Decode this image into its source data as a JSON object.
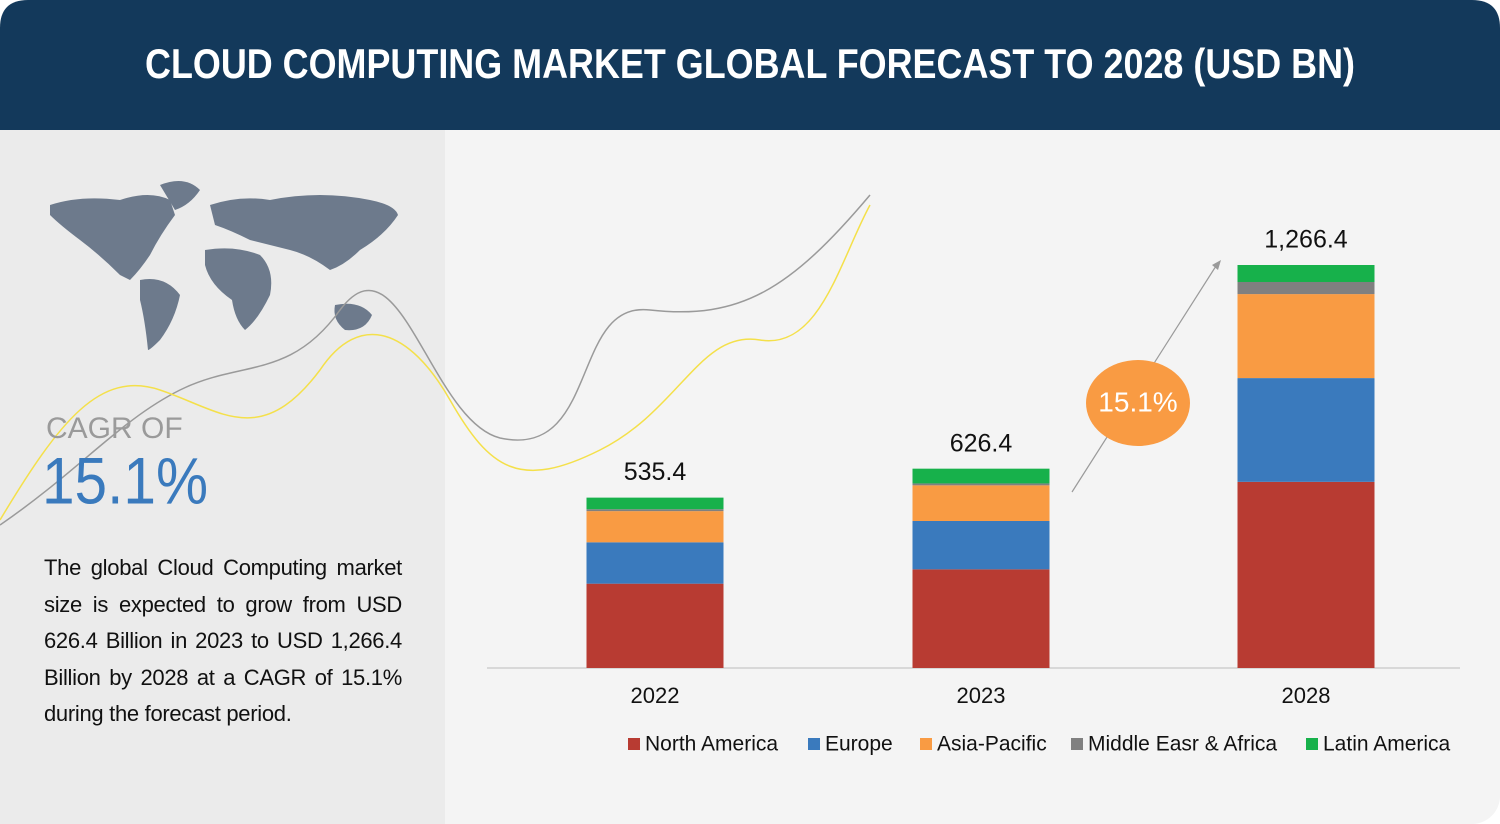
{
  "header": {
    "title": "CLOUD COMPUTING MARKET GLOBAL FORECAST TO 2028 (USD BN)"
  },
  "sidebar": {
    "cagr_label": "CAGR OF",
    "cagr_value": "15.1%",
    "description": "The global Cloud Computing market size is expected to grow from USD 626.4 Billion in 2023 to USD 1,266.4 Billion by 2028 at a CAGR of 15.1% during the forecast period."
  },
  "chart_data": {
    "type": "stacked_bar",
    "categories": [
      "2022",
      "2023",
      "2028"
    ],
    "series": [
      {
        "name": "North America",
        "color": "#b83b32",
        "values": [
          265,
          310,
          585
        ]
      },
      {
        "name": "Europe",
        "color": "#3a7abd",
        "values": [
          130,
          152,
          326
        ]
      },
      {
        "name": "Asia-Pacific",
        "color": "#f99b43",
        "values": [
          98,
          112,
          264
        ]
      },
      {
        "name": "Middle Easr & Africa",
        "color": "#808080",
        "values": [
          6,
          6,
          38
        ]
      },
      {
        "name": "Latin America",
        "color": "#17b14b",
        "values": [
          36.4,
          46.4,
          53.4
        ]
      }
    ],
    "totals": [
      535.4,
      626.4,
      1266.4
    ],
    "total_labels": [
      "535.4",
      "626.4",
      "1,266.4"
    ],
    "annotation": "15.1%",
    "legend": "bottom"
  }
}
